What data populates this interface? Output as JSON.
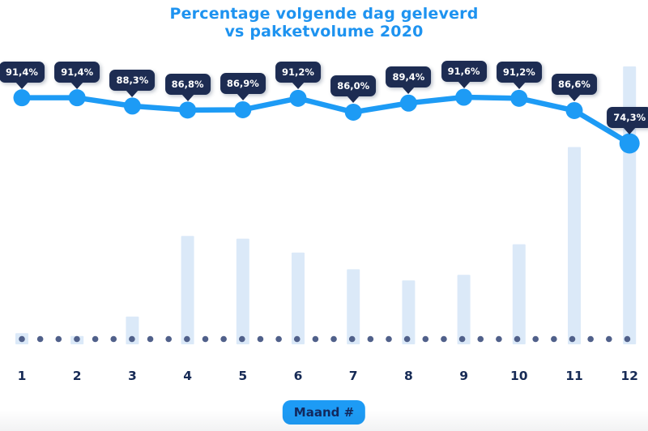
{
  "title": {
    "line1": "Percentage volgende dag geleverd",
    "line2": "vs pakketvolume 2020"
  },
  "xaxis": {
    "ticks": [
      "1",
      "2",
      "3",
      "4",
      "5",
      "6",
      "7",
      "8",
      "9",
      "10",
      "11",
      "12"
    ],
    "label_badge": "Maand #"
  },
  "chart_data": {
    "type": "line",
    "combo": "line-over-bars",
    "title": "Percentage volgende dag geleverd vs pakketvolume 2020",
    "xlabel": "Maand #",
    "categories": [
      1,
      2,
      3,
      4,
      5,
      6,
      7,
      8,
      9,
      10,
      11,
      12
    ],
    "series": [
      {
        "name": "Percentage volgende dag geleverd",
        "type": "line",
        "unit": "%",
        "values": [
          91.4,
          91.4,
          88.3,
          86.8,
          86.9,
          91.2,
          86.0,
          89.4,
          91.6,
          91.2,
          86.6,
          74.3
        ],
        "point_labels": [
          "91,4%",
          "91,4%",
          "88,3%",
          "86,8%",
          "86,9%",
          "91,2%",
          "86,0%",
          "89,4%",
          "91,6%",
          "91,2%",
          "86,6%",
          "74,3%"
        ],
        "ylim": [
          70,
          95
        ]
      },
      {
        "name": "Pakketvolume 2020",
        "type": "bar",
        "unit": "relative-to-max-percent",
        "values": [
          4,
          3,
          10,
          39,
          38,
          33,
          27,
          23,
          25,
          36,
          71,
          100
        ]
      }
    ],
    "legend": "none",
    "grid": false,
    "baseline_style": "dotted"
  },
  "colors": {
    "accent_blue": "#1D9BF5",
    "title_blue": "#1E93F0",
    "badge_navy": "#1D2C52",
    "badge_text": "#FFFFFF",
    "bar_fill": "#DBE9F8",
    "dot_baseline": "#50608A",
    "tick_navy": "#172B56",
    "background": "#FFFFFF"
  }
}
